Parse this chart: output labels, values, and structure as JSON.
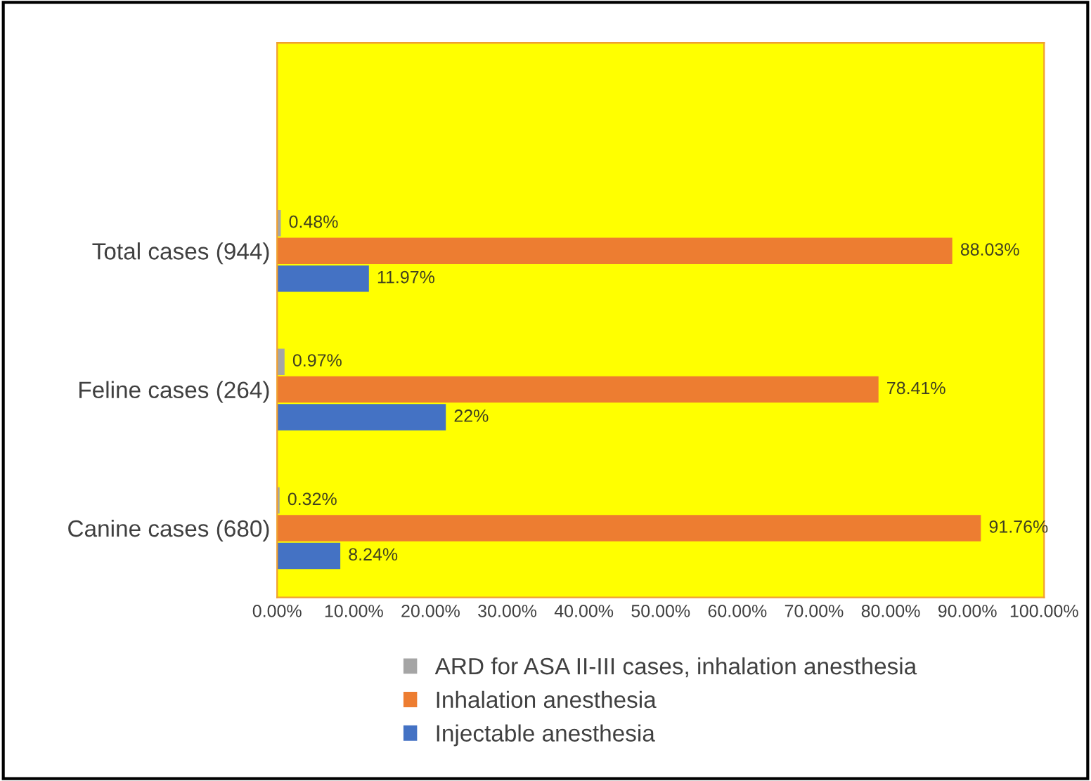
{
  "chart_data": {
    "type": "bar",
    "orientation": "horizontal",
    "categories": [
      null,
      "Total cases (944)",
      "Feline cases (264)",
      "Canine cases (680)"
    ],
    "series": [
      {
        "name": "ARD for ASA II-III cases, inhalation anesthesia",
        "color": "#a5a5a5",
        "values": [
          null,
          0.48,
          0.97,
          0.32
        ],
        "value_labels": [
          null,
          "0.48%",
          "0.97%",
          "0.32%"
        ]
      },
      {
        "name": "Inhalation anesthesia",
        "color": "#ed7d31",
        "values": [
          null,
          88.03,
          78.41,
          91.76
        ],
        "value_labels": [
          null,
          "88.03%",
          "78.41%",
          "91.76%"
        ]
      },
      {
        "name": "Injectable anesthesia",
        "color": "#4472c4",
        "values": [
          null,
          11.97,
          22,
          8.24
        ],
        "value_labels": [
          null,
          "11.97%",
          "22%",
          "8.24%"
        ]
      }
    ],
    "xlim": [
      0,
      100
    ],
    "xticks": [
      {
        "value": 0,
        "label": "0.00%"
      },
      {
        "value": 10,
        "label": "10.00%"
      },
      {
        "value": 20,
        "label": "20.00%"
      },
      {
        "value": 30,
        "label": "30.00%"
      },
      {
        "value": 40,
        "label": "40.00%"
      },
      {
        "value": 50,
        "label": "50.00%"
      },
      {
        "value": 60,
        "label": "60.00%"
      },
      {
        "value": 70,
        "label": "70.00%"
      },
      {
        "value": 80,
        "label": "80.00%"
      },
      {
        "value": 90,
        "label": "90.00%"
      },
      {
        "value": 100,
        "label": "100.00%"
      }
    ],
    "grid": false,
    "legend": "bottom"
  }
}
